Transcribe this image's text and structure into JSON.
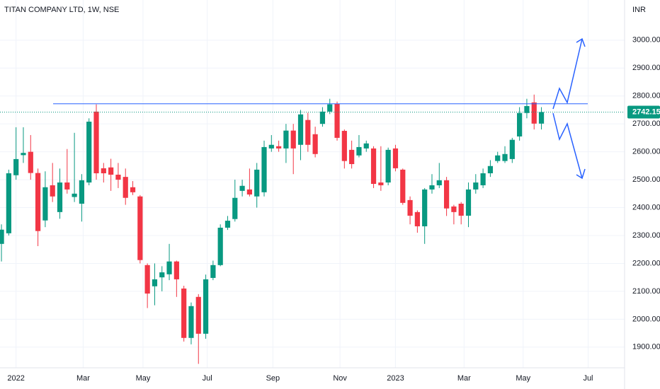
{
  "chart_data": {
    "type": "candlestick",
    "title": "TITAN COMPANY LTD, 1W, NSE",
    "y_axis_label": "INR",
    "up_color": "#089981",
    "down_color": "#f23645",
    "x": [
      0,
      1,
      2,
      3,
      4,
      5,
      6,
      7,
      8,
      9,
      10,
      11,
      12,
      13,
      14,
      15,
      16,
      17,
      18,
      19,
      20,
      21,
      22,
      23,
      24,
      25,
      26,
      27,
      28,
      29,
      30,
      31,
      32,
      33,
      34,
      35,
      36,
      37,
      38,
      39,
      40,
      41,
      42,
      43,
      44,
      45,
      46,
      47,
      48,
      49,
      50,
      51,
      52,
      53,
      54,
      55,
      56,
      57,
      58,
      59,
      60,
      61,
      62,
      63,
      64,
      65,
      66,
      67,
      68,
      69,
      70,
      71,
      72,
      73,
      74
    ],
    "open": [
      2270,
      2308,
      2516,
      2588,
      2600,
      2524,
      2354,
      2480,
      2384,
      2490,
      2438,
      2414,
      2490,
      2744,
      2541,
      2544,
      2518,
      2510,
      2473,
      2440,
      2194,
      2118,
      2150,
      2161,
      2207,
      2110,
      1933,
      2080,
      1948,
      2148,
      2194,
      2328,
      2359,
      2460,
      2465,
      2440,
      2455,
      2612,
      2620,
      2612,
      2676,
      2625,
      2714,
      2663,
      2700,
      2744,
      2772,
      2675,
      2607,
      2587,
      2612,
      2612,
      2490,
      2490,
      2612,
      2536,
      2427,
      2384,
      2333,
      2465,
      2480,
      2498,
      2404,
      2414,
      2371,
      2465,
      2480,
      2523,
      2567,
      2567,
      2574,
      2655,
      2739,
      2777,
      2701
    ],
    "high": [
      2340,
      2536,
      2688,
      2688,
      2660,
      2540,
      2530,
      2560,
      2540,
      2610,
      2668,
      2520,
      2720,
      2770,
      2560,
      2575,
      2560,
      2540,
      2495,
      2445,
      2200,
      2200,
      2190,
      2270,
      2210,
      2120,
      2060,
      2090,
      2160,
      2210,
      2340,
      2370,
      2500,
      2500,
      2540,
      2560,
      2640,
      2660,
      2640,
      2700,
      2700,
      2750,
      2740,
      2690,
      2760,
      2790,
      2780,
      2680,
      2640,
      2660,
      2640,
      2620,
      2620,
      2615,
      2625,
      2540,
      2440,
      2390,
      2470,
      2520,
      2560,
      2510,
      2410,
      2420,
      2490,
      2520,
      2540,
      2570,
      2600,
      2620,
      2650,
      2760,
      2790,
      2805,
      2760
    ],
    "low": [
      2207,
      2300,
      2500,
      2560,
      2500,
      2262,
      2330,
      2420,
      2360,
      2450,
      2420,
      2350,
      2480,
      2500,
      2490,
      2460,
      2470,
      2410,
      2445,
      2200,
      2040,
      2050,
      2100,
      2140,
      2080,
      1920,
      1910,
      1840,
      1930,
      2140,
      2190,
      2320,
      2350,
      2440,
      2440,
      2400,
      2440,
      2600,
      2600,
      2560,
      2520,
      2570,
      2600,
      2580,
      2690,
      2735,
      2640,
      2540,
      2540,
      2580,
      2600,
      2470,
      2460,
      2480,
      2530,
      2410,
      2340,
      2310,
      2270,
      2450,
      2470,
      2370,
      2340,
      2340,
      2330,
      2450,
      2470,
      2510,
      2560,
      2560,
      2560,
      2640,
      2720,
      2680,
      2680
    ],
    "close": [
      2321,
      2523,
      2574,
      2596,
      2524,
      2316,
      2473,
      2440,
      2490,
      2465,
      2450,
      2498,
      2708,
      2523,
      2523,
      2518,
      2500,
      2435,
      2455,
      2212,
      2092,
      2143,
      2168,
      2207,
      2143,
      1933,
      2047,
      1948,
      2143,
      2194,
      2328,
      2353,
      2435,
      2478,
      2447,
      2536,
      2617,
      2625,
      2612,
      2676,
      2612,
      2734,
      2625,
      2592,
      2744,
      2770,
      2650,
      2567,
      2556,
      2617,
      2630,
      2485,
      2480,
      2607,
      2541,
      2417,
      2371,
      2333,
      2465,
      2480,
      2498,
      2397,
      2384,
      2371,
      2465,
      2490,
      2523,
      2549,
      2587,
      2592,
      2643,
      2739,
      2764,
      2701,
      2742.15
    ],
    "xlim": [
      -0.2,
      85.4
    ],
    "xticks": [
      {
        "value": 2,
        "label": "2022"
      },
      {
        "value": 11.2,
        "label": "Mar"
      },
      {
        "value": 19.4,
        "label": "May"
      },
      {
        "value": 28.2,
        "label": "Jul"
      },
      {
        "value": 37.2,
        "label": "Sep"
      },
      {
        "value": 46.4,
        "label": "Nov"
      },
      {
        "value": 54,
        "label": "2023"
      },
      {
        "value": 63.4,
        "label": "Mar"
      },
      {
        "value": 71.5,
        "label": "May"
      },
      {
        "value": 80.4,
        "label": "Jul"
      }
    ],
    "ylim": [
      1826,
      3144
    ],
    "yticks": [
      {
        "value": 3000,
        "label": "3000.00"
      },
      {
        "value": 2900,
        "label": "2900.00"
      },
      {
        "value": 2800,
        "label": "2800.00"
      },
      {
        "value": 2700,
        "label": "2700.00"
      },
      {
        "value": 2600,
        "label": "2600.00"
      },
      {
        "value": 2500,
        "label": "2500.00"
      },
      {
        "value": 2400,
        "label": "2400.00"
      },
      {
        "value": 2300,
        "label": "2300.00"
      },
      {
        "value": 2200,
        "label": "2200.00"
      },
      {
        "value": 2100,
        "label": "2100.00"
      },
      {
        "value": 2000,
        "label": "2000.00"
      },
      {
        "value": 1900,
        "label": "1900.00"
      }
    ],
    "grid": true,
    "resistance_level": 2772,
    "last_price": {
      "value": 2742.15,
      "label": "2742.15"
    }
  }
}
